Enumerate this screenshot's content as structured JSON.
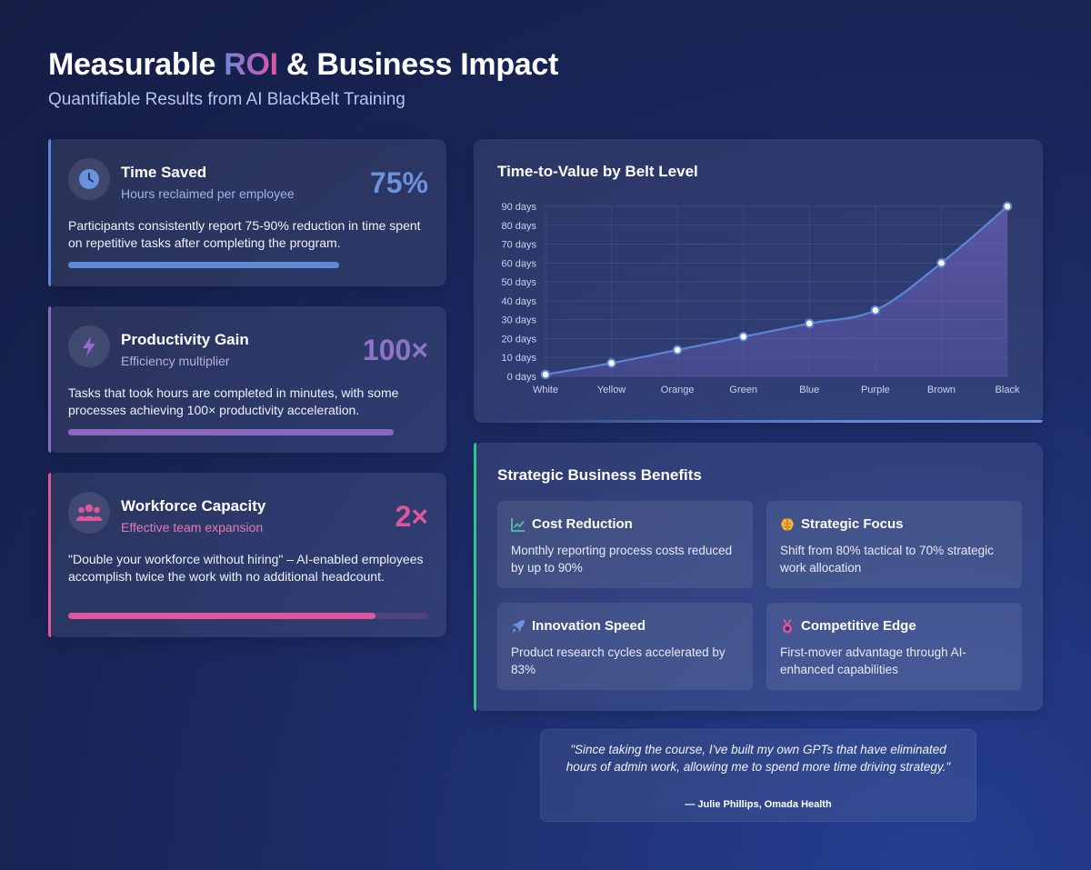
{
  "header": {
    "title_pre": "Measurable ",
    "title_accent": "ROI",
    "title_post": " & Business Impact",
    "subtitle": "Quantifiable Results from AI BlackBelt Training"
  },
  "metrics": [
    {
      "title": "Time Saved",
      "subtitle": "Hours reclaimed per employee",
      "value": "75%",
      "description": "Participants consistently report 75-90% reduction in time spent on repetitive tasks after completing the program.",
      "icon": "clock-icon",
      "color": "#6b93dd",
      "progress": 0.75
    },
    {
      "title": "Productivity Gain",
      "subtitle": "Efficiency multiplier",
      "value": "100×",
      "description": "Tasks that took hours are completed in minutes, with some processes achieving 100× productivity acceleration.",
      "icon": "lightning-icon",
      "color": "#9b72c9",
      "progress": 0.9
    },
    {
      "title": "Workforce Capacity",
      "subtitle": "Effective team expansion",
      "value": "2×",
      "description": "\"Double your workforce without hiring\" – AI-enabled employees accomplish twice the work with no additional headcount.",
      "icon": "users-icon",
      "color": "#e0569a",
      "progress": 0.85
    }
  ],
  "chart_panel": {
    "title": "Time-to-Value by Belt Level"
  },
  "chart_data": {
    "type": "area",
    "categories": [
      "White",
      "Yellow",
      "Orange",
      "Green",
      "Blue",
      "Purple",
      "Brown",
      "Black"
    ],
    "values": [
      1,
      7,
      14,
      21,
      28,
      35,
      60,
      90
    ],
    "y_ticks": [
      "0 days",
      "10 days",
      "20 days",
      "30 days",
      "40 days",
      "50 days",
      "60 days",
      "70 days",
      "80 days",
      "90 days"
    ],
    "ylim": [
      0,
      90
    ],
    "grid": true,
    "line_color": "#5a86d6",
    "fill_color": "#6a5fb8"
  },
  "benefits": {
    "title": "Strategic Business Benefits",
    "items": [
      {
        "title": "Cost Reduction",
        "description": "Monthly reporting process costs reduced by up to 90%",
        "icon": "chart-line-icon",
        "color": "#4fc3a1"
      },
      {
        "title": "Strategic Focus",
        "description": "Shift from 80% tactical to 70% strategic work allocation",
        "icon": "brain-icon",
        "color": "#f3b13b"
      },
      {
        "title": "Innovation Speed",
        "description": "Product research cycles accelerated by 83%",
        "icon": "rocket-icon",
        "color": "#6b93dd"
      },
      {
        "title": "Competitive Edge",
        "description": "First-mover advantage through AI-enhanced capabilities",
        "icon": "medal-icon",
        "color": "#e0569a"
      }
    ]
  },
  "testimonial": {
    "quote": "\"Since taking the course, I've built my own GPTs that have eliminated hours of admin work, allowing me to spend more time driving strategy.\"",
    "author": "— Julie Phillips, Omada Health"
  }
}
